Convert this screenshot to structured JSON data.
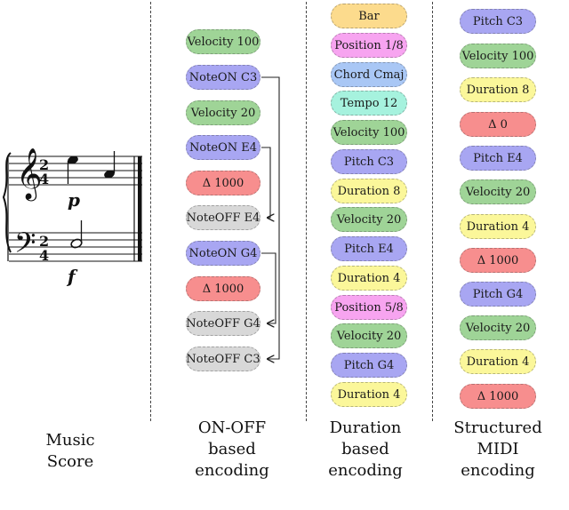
{
  "colors": {
    "velocity": "#9fd497",
    "noteon": "#a8a6f2",
    "delta": "#f78e8e",
    "noteoff": "#d8d8d8",
    "bar": "#fcdb8d",
    "position": "#f7a4f0",
    "chord": "#a9c7f5",
    "tempo": "#a6f2de",
    "pitch": "#a8a6f2",
    "duration": "#fbf79a"
  },
  "score": {
    "time_sig_top": "2",
    "time_sig_bottom": "4",
    "dyn_top": "p",
    "dyn_bottom": "f"
  },
  "columns": {
    "onoff": {
      "tokens": [
        {
          "label": "Velocity 100",
          "kind": "velocity"
        },
        {
          "label": "NoteON C3",
          "kind": "noteon"
        },
        {
          "label": "Velocity 20",
          "kind": "velocity"
        },
        {
          "label": "NoteON E4",
          "kind": "noteon"
        },
        {
          "label": "Δ 1000",
          "kind": "delta"
        },
        {
          "label": "NoteOFF E4",
          "kind": "noteoff"
        },
        {
          "label": "NoteON G4",
          "kind": "noteon"
        },
        {
          "label": "Δ 1000",
          "kind": "delta"
        },
        {
          "label": "NoteOFF G4",
          "kind": "noteoff"
        },
        {
          "label": "NoteOFF C3",
          "kind": "noteoff"
        }
      ]
    },
    "duration": {
      "tokens": [
        {
          "label": "Bar",
          "kind": "bar"
        },
        {
          "label": "Position 1/8",
          "kind": "position"
        },
        {
          "label": "Chord Cmaj",
          "kind": "chord"
        },
        {
          "label": "Tempo 12",
          "kind": "tempo"
        },
        {
          "label": "Velocity 100",
          "kind": "velocity"
        },
        {
          "label": "Pitch C3",
          "kind": "pitch"
        },
        {
          "label": "Duration 8",
          "kind": "duration"
        },
        {
          "label": "Velocity 20",
          "kind": "velocity"
        },
        {
          "label": "Pitch E4",
          "kind": "pitch"
        },
        {
          "label": "Duration 4",
          "kind": "duration"
        },
        {
          "label": "Position 5/8",
          "kind": "position"
        },
        {
          "label": "Velocity 20",
          "kind": "velocity"
        },
        {
          "label": "Pitch G4",
          "kind": "pitch"
        },
        {
          "label": "Duration 4",
          "kind": "duration"
        }
      ]
    },
    "structured": {
      "tokens": [
        {
          "label": "Pitch C3",
          "kind": "pitch"
        },
        {
          "label": "Velocity 100",
          "kind": "velocity"
        },
        {
          "label": "Duration 8",
          "kind": "duration"
        },
        {
          "label": "Δ 0",
          "kind": "delta"
        },
        {
          "label": "Pitch E4",
          "kind": "pitch"
        },
        {
          "label": "Velocity 20",
          "kind": "velocity"
        },
        {
          "label": "Duration 4",
          "kind": "duration"
        },
        {
          "label": "Δ 1000",
          "kind": "delta"
        },
        {
          "label": "Pitch G4",
          "kind": "pitch"
        },
        {
          "label": "Velocity 20",
          "kind": "velocity"
        },
        {
          "label": "Duration 4",
          "kind": "duration"
        },
        {
          "label": "Δ 1000",
          "kind": "delta"
        }
      ]
    }
  },
  "captions": {
    "score": [
      "Music",
      "Score"
    ],
    "onoff": [
      "ON-OFF",
      "based",
      "encoding"
    ],
    "duration": [
      "Duration",
      "based",
      "encoding"
    ],
    "structured": [
      "Structured",
      "MIDI",
      "encoding"
    ]
  }
}
